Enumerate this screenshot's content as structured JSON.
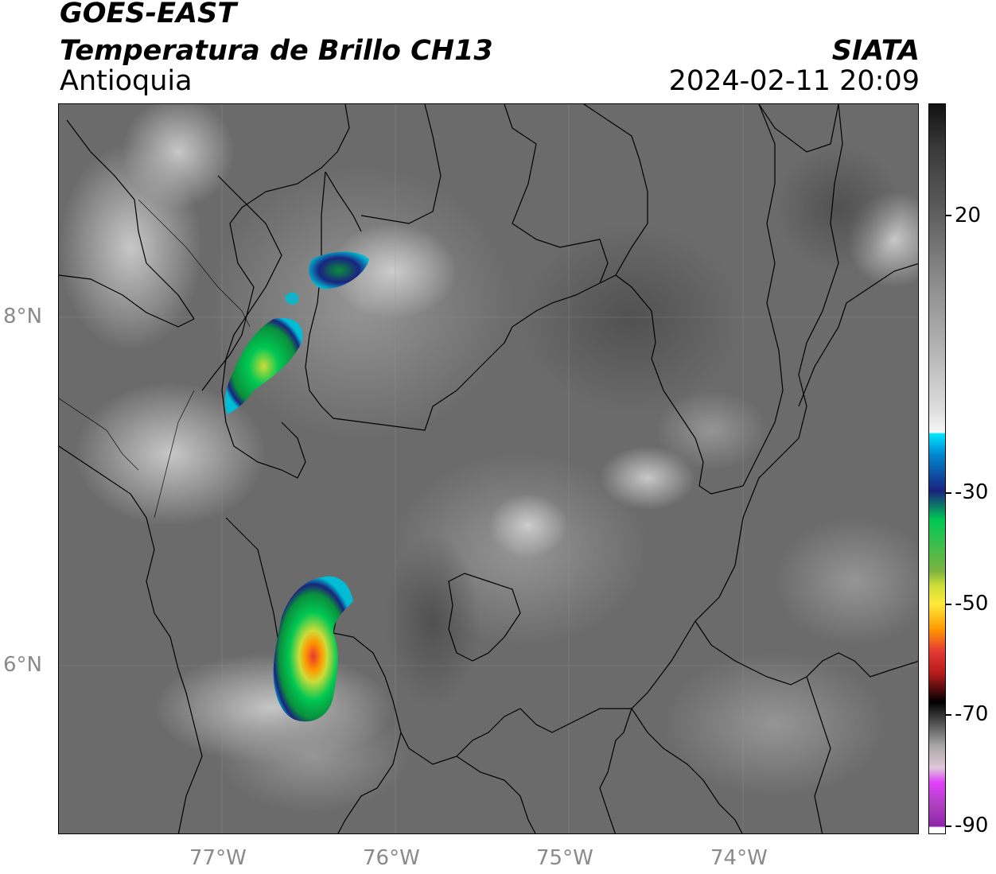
{
  "header": {
    "satellite": "GOES-EAST",
    "product": "Temperatura de Brillo CH13",
    "region": "Antioquia",
    "brand": "SIATA",
    "timestamp": "2024-02-11 20:09"
  },
  "map": {
    "lat_ticks": [
      "8°N",
      "6°N"
    ],
    "lon_ticks": [
      "77°W",
      "76°W",
      "75°W",
      "74°W"
    ]
  },
  "colorbar": {
    "ticks": [
      "20",
      "-30",
      "-50",
      "-70",
      "-90"
    ],
    "colors": {
      "warm_gray_top": "#1a1a1a",
      "cyan": "#00e5ff",
      "dark_blue": "#1a237e",
      "green": "#00c853",
      "yellow": "#ffeb3b",
      "orange": "#ff9800",
      "red": "#e53935",
      "black": "#000000",
      "pink": "#e040fb",
      "purple": "#8e24aa"
    }
  }
}
